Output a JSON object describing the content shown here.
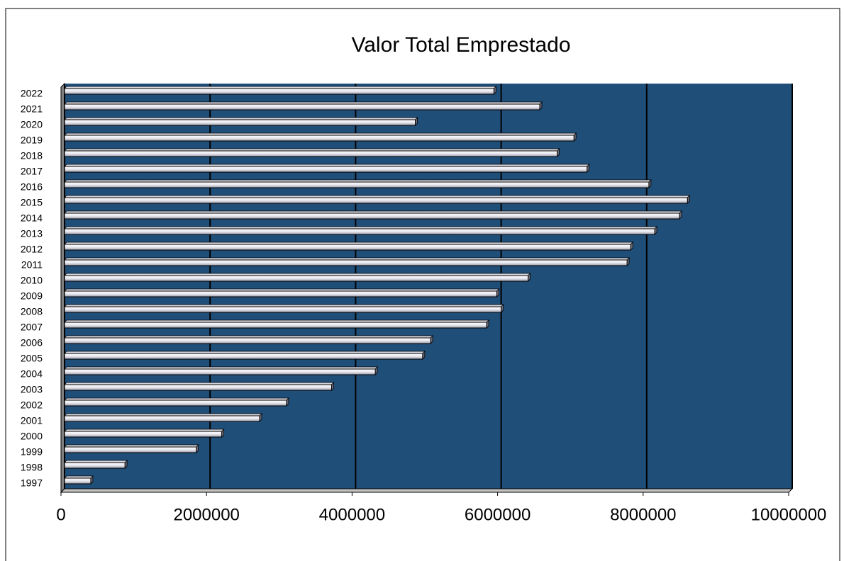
{
  "chart_data": {
    "type": "bar",
    "orientation": "horizontal",
    "title": "Valor Total Emprestado",
    "categories": [
      "1997",
      "1998",
      "1999",
      "2000",
      "2001",
      "2002",
      "2003",
      "2004",
      "2005",
      "2006",
      "2007",
      "2008",
      "2009",
      "2010",
      "2011",
      "2012",
      "2013",
      "2014",
      "2015",
      "2016",
      "2017",
      "2018",
      "2019",
      "2020",
      "2021",
      "2022"
    ],
    "values": [
      360000,
      830000,
      1810000,
      2160000,
      2680000,
      3050000,
      3670000,
      4270000,
      4920000,
      5030000,
      5800000,
      6000000,
      5940000,
      6370000,
      7730000,
      7780000,
      8110000,
      8450000,
      8560000,
      8030000,
      7180000,
      6770000,
      7000000,
      4820000,
      6530000,
      5900000
    ],
    "color": "#ffffff",
    "plot_background": "#1f4e79",
    "xlim": [
      0,
      10000000
    ],
    "xticks": [
      0,
      2000000,
      4000000,
      6000000,
      8000000,
      10000000
    ],
    "grid": true
  }
}
